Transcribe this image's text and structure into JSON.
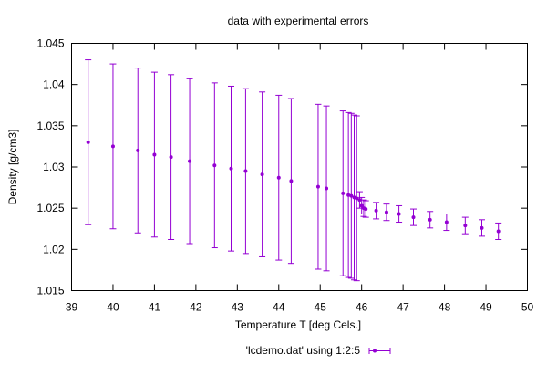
{
  "chart_data": {
    "type": "scatter",
    "title": "data with experimental errors",
    "xlabel": "Temperature T  [deg Cels.]",
    "ylabel": "Density [g/cm3]",
    "xlim": [
      39,
      50
    ],
    "ylim": [
      1.015,
      1.045
    ],
    "xticks": [
      "39",
      "40",
      "41",
      "42",
      "43",
      "44",
      "45",
      "46",
      "47",
      "48",
      "49",
      "50"
    ],
    "yticks": [
      "1.015",
      "1.02",
      "1.025",
      "1.03",
      "1.035",
      "1.04",
      "1.045"
    ],
    "grid": false,
    "legend_position": "bottom-center",
    "color": "#9400d3",
    "series": [
      {
        "name": "'lcdemo.dat' using 1:2:5",
        "points": [
          {
            "x": 39.4,
            "y": 1.033,
            "err": 0.01
          },
          {
            "x": 40.0,
            "y": 1.0325,
            "err": 0.01
          },
          {
            "x": 40.6,
            "y": 1.032,
            "err": 0.01
          },
          {
            "x": 41.0,
            "y": 1.0315,
            "err": 0.01
          },
          {
            "x": 41.4,
            "y": 1.0312,
            "err": 0.01
          },
          {
            "x": 41.85,
            "y": 1.0307,
            "err": 0.01
          },
          {
            "x": 42.45,
            "y": 1.0302,
            "err": 0.01
          },
          {
            "x": 42.85,
            "y": 1.0298,
            "err": 0.01
          },
          {
            "x": 43.2,
            "y": 1.0295,
            "err": 0.01
          },
          {
            "x": 43.6,
            "y": 1.0291,
            "err": 0.01
          },
          {
            "x": 44.0,
            "y": 1.0287,
            "err": 0.01
          },
          {
            "x": 44.3,
            "y": 1.0283,
            "err": 0.01
          },
          {
            "x": 44.95,
            "y": 1.0276,
            "err": 0.01
          },
          {
            "x": 45.15,
            "y": 1.0274,
            "err": 0.01
          },
          {
            "x": 45.55,
            "y": 1.0268,
            "err": 0.01
          },
          {
            "x": 45.68,
            "y": 1.0266,
            "err": 0.01
          },
          {
            "x": 45.75,
            "y": 1.0265,
            "err": 0.01
          },
          {
            "x": 45.82,
            "y": 1.0263,
            "err": 0.01
          },
          {
            "x": 45.88,
            "y": 1.0262,
            "err": 0.01
          },
          {
            "x": 45.95,
            "y": 1.026,
            "err": 0.001
          },
          {
            "x": 46.0,
            "y": 1.0253,
            "err": 0.001
          },
          {
            "x": 46.05,
            "y": 1.025,
            "err": 0.001
          },
          {
            "x": 46.1,
            "y": 1.0249,
            "err": 0.001
          },
          {
            "x": 46.35,
            "y": 1.0247,
            "err": 0.001
          },
          {
            "x": 46.6,
            "y": 1.0245,
            "err": 0.001
          },
          {
            "x": 46.9,
            "y": 1.0243,
            "err": 0.001
          },
          {
            "x": 47.25,
            "y": 1.0239,
            "err": 0.001
          },
          {
            "x": 47.65,
            "y": 1.0236,
            "err": 0.001
          },
          {
            "x": 48.05,
            "y": 1.0233,
            "err": 0.001
          },
          {
            "x": 48.5,
            "y": 1.0229,
            "err": 0.001
          },
          {
            "x": 48.9,
            "y": 1.0226,
            "err": 0.001
          },
          {
            "x": 49.3,
            "y": 1.0222,
            "err": 0.001
          }
        ]
      }
    ]
  }
}
